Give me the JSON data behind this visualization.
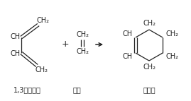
{
  "bg_color": "#ffffff",
  "text_color": "#222222",
  "label_1": "1,3－丁二烯",
  "label_2": "乙烯",
  "label_3": "环己烯",
  "fs_mol": 7.0,
  "fs_name": 7.0
}
